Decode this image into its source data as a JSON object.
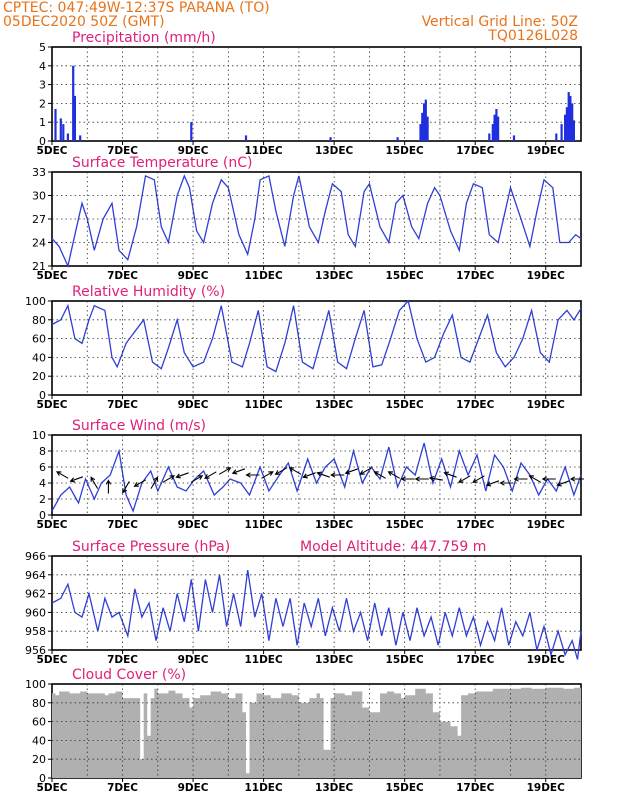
{
  "header": {
    "line1": "CPTEC:   047:49W-12:37S  PARANA (TO)",
    "line2": "05DEC2020 50Z (GMT)",
    "grid_note": "Vertical Grid Line: 50Z",
    "code": "TQ0126L028"
  },
  "colors": {
    "header": "#e8731a",
    "title": "#e0207a",
    "line": "#2f3fd6",
    "bar": "#1f2fe0",
    "cloud": "#b0b0b0",
    "arrow": "#000000"
  },
  "x_ticks": [
    "5DEC",
    "7DEC",
    "9DEC",
    "11DEC",
    "13DEC",
    "15DEC",
    "17DEC",
    "19DEC"
  ],
  "chart_data": [
    {
      "type": "bar",
      "title": "Precipitation (mm/h)",
      "ylim": [
        0,
        5
      ],
      "yticks": [
        "0",
        "1",
        "2",
        "3",
        "4",
        "5"
      ],
      "x": [
        5.1,
        5.25,
        5.32,
        5.45,
        5.6,
        5.65,
        5.8,
        8.95,
        10.5,
        12.9,
        14.8,
        15.45,
        15.5,
        15.55,
        15.6,
        15.65,
        17.4,
        17.5,
        17.55,
        17.6,
        17.65,
        18.1,
        19.3,
        19.45,
        19.55,
        19.6,
        19.65,
        19.7,
        19.75,
        19.8
      ],
      "values": [
        1.7,
        1.2,
        0.9,
        0.4,
        4.0,
        2.4,
        0.3,
        1.0,
        0.3,
        0.2,
        0.2,
        0.9,
        1.5,
        2.0,
        2.2,
        1.3,
        0.4,
        0.9,
        1.4,
        1.7,
        1.3,
        0.3,
        0.4,
        0.9,
        1.4,
        1.8,
        2.6,
        2.4,
        2.0,
        1.1
      ]
    },
    {
      "type": "line",
      "title": "Surface Temperature (nC)",
      "ylim": [
        21,
        33
      ],
      "yticks": [
        "21",
        "24",
        "27",
        "30",
        "33"
      ],
      "x": [
        5.0,
        5.2,
        5.45,
        5.65,
        5.85,
        6.0,
        6.2,
        6.45,
        6.7,
        6.9,
        7.15,
        7.4,
        7.65,
        7.9,
        8.1,
        8.3,
        8.55,
        8.75,
        8.9,
        9.1,
        9.3,
        9.55,
        9.8,
        10.0,
        10.3,
        10.55,
        10.75,
        10.9,
        11.15,
        11.35,
        11.6,
        11.85,
        12.0,
        12.3,
        12.55,
        12.75,
        12.95,
        13.2,
        13.4,
        13.6,
        13.85,
        14.0,
        14.3,
        14.55,
        14.75,
        14.95,
        15.2,
        15.4,
        15.65,
        15.85,
        16.0,
        16.3,
        16.55,
        16.75,
        16.95,
        17.2,
        17.4,
        17.65,
        17.85,
        18.0,
        18.3,
        18.55,
        18.75,
        18.95,
        19.2,
        19.4,
        19.65,
        19.85,
        20.0
      ],
      "values": [
        24.5,
        23.5,
        21.0,
        25.0,
        29.0,
        27.0,
        23.0,
        27.0,
        29.0,
        23.0,
        21.8,
        26.0,
        32.5,
        32.0,
        26.0,
        24.0,
        30.0,
        32.5,
        31.0,
        25.5,
        24.0,
        29.0,
        32.0,
        31.0,
        25.0,
        22.5,
        27.0,
        32.0,
        32.5,
        28.0,
        23.5,
        30.0,
        32.5,
        26.0,
        24.0,
        28.0,
        31.5,
        30.5,
        25.0,
        23.5,
        30.5,
        31.5,
        26.0,
        24.0,
        29.0,
        30.0,
        26.0,
        24.5,
        29.0,
        31.0,
        30.0,
        25.5,
        23.0,
        29.0,
        31.5,
        31.0,
        25.0,
        24.0,
        28.0,
        31.0,
        27.0,
        23.5,
        28.0,
        32.0,
        31.0,
        24.0,
        24.0,
        25.0,
        24.5
      ]
    },
    {
      "type": "line",
      "title": "Relative Humidity (%)",
      "ylim": [
        0,
        100
      ],
      "yticks": [
        "0",
        "20",
        "40",
        "60",
        "80",
        "100"
      ],
      "x": [
        5.0,
        5.25,
        5.45,
        5.65,
        5.85,
        6.05,
        6.2,
        6.5,
        6.7,
        6.85,
        7.1,
        7.4,
        7.6,
        7.85,
        8.1,
        8.3,
        8.55,
        8.75,
        9.0,
        9.3,
        9.55,
        9.8,
        10.1,
        10.4,
        10.6,
        10.85,
        11.1,
        11.35,
        11.6,
        11.85,
        12.1,
        12.4,
        12.6,
        12.85,
        13.1,
        13.35,
        13.6,
        13.85,
        14.1,
        14.35,
        14.6,
        14.85,
        15.1,
        15.35,
        15.6,
        15.85,
        16.1,
        16.35,
        16.6,
        16.85,
        17.1,
        17.35,
        17.6,
        17.85,
        18.1,
        18.35,
        18.6,
        18.85,
        19.1,
        19.35,
        19.6,
        19.8,
        20.0
      ],
      "values": [
        75,
        80,
        95,
        60,
        55,
        80,
        95,
        90,
        40,
        30,
        55,
        70,
        80,
        35,
        28,
        50,
        80,
        45,
        30,
        35,
        60,
        95,
        35,
        30,
        55,
        90,
        30,
        25,
        55,
        95,
        35,
        28,
        55,
        90,
        35,
        28,
        60,
        90,
        30,
        32,
        60,
        90,
        100,
        60,
        35,
        40,
        65,
        85,
        40,
        35,
        60,
        85,
        45,
        30,
        40,
        60,
        90,
        45,
        35,
        80,
        90,
        80,
        92
      ]
    },
    {
      "type": "line",
      "title": "Surface Wind (m/s)",
      "ylim": [
        0,
        10
      ],
      "yticks": [
        "0",
        "2",
        "4",
        "6",
        "8",
        "10"
      ],
      "x": [
        5.0,
        5.25,
        5.5,
        5.75,
        5.95,
        6.2,
        6.4,
        6.65,
        6.9,
        7.1,
        7.3,
        7.55,
        7.8,
        8.0,
        8.3,
        8.55,
        8.8,
        9.05,
        9.3,
        9.6,
        9.85,
        10.05,
        10.35,
        10.6,
        10.9,
        11.15,
        11.45,
        11.7,
        11.95,
        12.25,
        12.5,
        12.75,
        13.0,
        13.3,
        13.55,
        13.8,
        14.05,
        14.3,
        14.55,
        14.8,
        15.05,
        15.3,
        15.55,
        15.8,
        16.05,
        16.3,
        16.55,
        16.8,
        17.05,
        17.3,
        17.55,
        17.8,
        18.05,
        18.3,
        18.55,
        18.8,
        19.05,
        19.3,
        19.55,
        19.8,
        20.0
      ],
      "values": [
        0.5,
        2.5,
        3.5,
        1.5,
        4.5,
        2.0,
        4.0,
        5.0,
        8.0,
        2.5,
        0.5,
        4.0,
        5.5,
        3.0,
        6.0,
        3.5,
        3.0,
        4.5,
        5.5,
        2.5,
        3.5,
        4.5,
        4.0,
        2.5,
        6.0,
        3.0,
        5.0,
        6.5,
        3.0,
        7.0,
        4.0,
        6.0,
        7.0,
        3.5,
        8.0,
        4.0,
        6.0,
        4.5,
        8.5,
        3.5,
        6.0,
        5.0,
        9.0,
        4.0,
        7.0,
        3.5,
        8.0,
        5.0,
        7.5,
        3.0,
        7.5,
        6.0,
        3.0,
        6.5,
        5.0,
        2.5,
        4.5,
        3.0,
        6.0,
        2.5,
        5.0
      ],
      "arrows": {
        "x": [
          5.3,
          5.7,
          6.2,
          6.6,
          7.1,
          7.5,
          7.9,
          8.3,
          8.7,
          9.1,
          9.5,
          9.9,
          10.3,
          10.7,
          11.1,
          11.5,
          11.9,
          12.3,
          12.7,
          13.1,
          13.5,
          13.9,
          14.3,
          14.7,
          15.1,
          15.5,
          15.9,
          16.3,
          16.7,
          17.1,
          17.5,
          17.9,
          18.3,
          18.7,
          19.1,
          19.5,
          19.9
        ],
        "speed": [
          5.0,
          4.5,
          4.0,
          3.5,
          3.5,
          4.0,
          4.0,
          4.5,
          5.0,
          4.5,
          5.0,
          5.5,
          5.5,
          5.0,
          5.0,
          5.5,
          5.5,
          5.0,
          5.0,
          5.0,
          5.5,
          5.5,
          5.0,
          5.0,
          4.5,
          4.5,
          4.5,
          5.0,
          4.5,
          4.5,
          4.0,
          4.0,
          4.5,
          4.5,
          4.5,
          4.0,
          4.5
        ],
        "dir_deg": [
          150,
          200,
          120,
          90,
          240,
          210,
          60,
          30,
          200,
          30,
          210,
          30,
          200,
          180,
          30,
          210,
          150,
          200,
          160,
          180,
          200,
          210,
          150,
          150,
          180,
          180,
          170,
          160,
          210,
          210,
          200,
          180,
          180,
          150,
          180,
          200,
          180
        ]
      }
    },
    {
      "type": "line",
      "title": "Surface Pressure (hPa)",
      "subtitle": "Model Altitude: 447.759 m",
      "ylim": [
        956,
        966
      ],
      "yticks": [
        "956",
        "958",
        "960",
        "962",
        "964",
        "966"
      ],
      "x": [
        5.0,
        5.25,
        5.45,
        5.65,
        5.85,
        6.05,
        6.3,
        6.5,
        6.7,
        6.9,
        7.15,
        7.35,
        7.55,
        7.75,
        7.95,
        8.15,
        8.35,
        8.55,
        8.75,
        8.95,
        9.15,
        9.35,
        9.55,
        9.75,
        9.95,
        10.15,
        10.35,
        10.55,
        10.75,
        10.95,
        11.15,
        11.35,
        11.55,
        11.75,
        11.95,
        12.15,
        12.35,
        12.55,
        12.75,
        12.95,
        13.15,
        13.35,
        13.55,
        13.75,
        13.95,
        14.15,
        14.35,
        14.55,
        14.75,
        14.95,
        15.15,
        15.35,
        15.55,
        15.75,
        15.95,
        16.15,
        16.35,
        16.55,
        16.75,
        16.95,
        17.15,
        17.35,
        17.55,
        17.75,
        17.95,
        18.15,
        18.35,
        18.55,
        18.75,
        18.95,
        19.15,
        19.35,
        19.55,
        19.75,
        19.9,
        20.0
      ],
      "values": [
        961.0,
        961.5,
        963.0,
        960.0,
        959.5,
        962.0,
        958.0,
        961.5,
        959.5,
        960.0,
        957.5,
        962.5,
        959.5,
        961.0,
        957.0,
        960.5,
        958.0,
        962.0,
        959.0,
        963.5,
        958.0,
        963.5,
        960.0,
        964.0,
        958.5,
        962.0,
        958.5,
        964.5,
        959.5,
        962.0,
        957.0,
        961.5,
        958.5,
        961.5,
        956.5,
        961.0,
        958.5,
        961.5,
        957.5,
        960.5,
        958.0,
        961.5,
        958.0,
        960.0,
        957.0,
        961.0,
        957.5,
        960.5,
        956.5,
        960.0,
        957.0,
        960.5,
        957.5,
        959.5,
        956.5,
        960.0,
        957.5,
        960.5,
        957.5,
        959.5,
        956.5,
        959.0,
        957.0,
        960.5,
        956.5,
        959.0,
        957.5,
        960.0,
        956.0,
        958.5,
        955.5,
        958.0,
        955.5,
        957.0,
        955.0,
        958.0
      ]
    },
    {
      "type": "area",
      "title": "Cloud Cover (%)",
      "ylim": [
        0,
        100
      ],
      "yticks": [
        "0",
        "20",
        "40",
        "60",
        "80",
        "100"
      ],
      "x": [
        5.0,
        5.1,
        5.2,
        5.5,
        5.8,
        6.0,
        6.5,
        6.6,
        6.8,
        7.0,
        7.3,
        7.5,
        7.6,
        7.7,
        7.8,
        7.9,
        8.0,
        8.3,
        8.5,
        8.7,
        8.9,
        9.0,
        9.2,
        9.5,
        9.8,
        10.0,
        10.2,
        10.4,
        10.5,
        10.6,
        10.8,
        11.0,
        11.2,
        11.5,
        11.8,
        12.0,
        12.3,
        12.5,
        12.6,
        12.7,
        12.9,
        13.0,
        13.3,
        13.5,
        13.8,
        14.0,
        14.3,
        14.5,
        14.7,
        14.9,
        15.0,
        15.3,
        15.6,
        15.8,
        16.0,
        16.3,
        16.5,
        16.6,
        16.8,
        17.0,
        17.5,
        18.0,
        18.3,
        18.6,
        19.0,
        19.5,
        19.8,
        20.0
      ],
      "values": [
        90,
        88,
        92,
        90,
        92,
        90,
        88,
        90,
        92,
        85,
        85,
        20,
        90,
        45,
        85,
        95,
        90,
        93,
        90,
        85,
        75,
        85,
        88,
        92,
        90,
        85,
        90,
        70,
        5,
        80,
        90,
        88,
        85,
        90,
        88,
        80,
        85,
        90,
        85,
        30,
        85,
        90,
        88,
        92,
        75,
        70,
        90,
        92,
        90,
        85,
        88,
        95,
        90,
        70,
        60,
        55,
        45,
        88,
        90,
        92,
        95,
        95,
        96,
        95,
        96,
        95,
        96,
        95
      ]
    }
  ]
}
